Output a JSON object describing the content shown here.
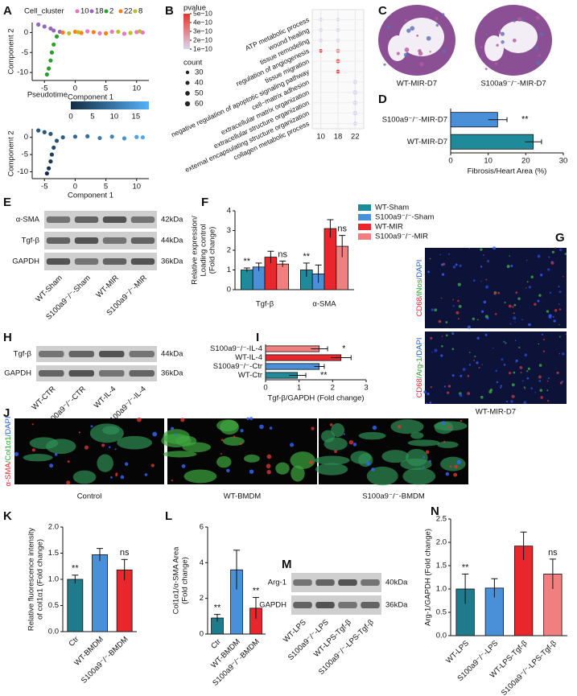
{
  "chart_data": [
    {
      "panel": "A",
      "type": "scatter",
      "legend_title": "Cell_cluster",
      "xlabel": "Component 1",
      "ylabel": "Component 2",
      "xlim": [
        -7,
        12
      ],
      "ylim": [
        -12,
        2.5
      ],
      "xticks": [
        -5,
        0,
        5,
        10
      ],
      "yticks": [
        0,
        -5,
        -10
      ],
      "series": [
        {
          "name": "10",
          "color": "#e377c2",
          "x": [
            2,
            4,
            6,
            8,
            10,
            11
          ],
          "y": [
            0.3,
            -0.2,
            0.2,
            -0.3,
            0.1,
            0
          ]
        },
        {
          "name": "18",
          "color": "#9467bd",
          "x": [
            -6,
            -5,
            -4,
            -3.5,
            -2.5
          ],
          "y": [
            2,
            1.5,
            1,
            0.5,
            0.2
          ]
        },
        {
          "name": "2",
          "color": "#2ca02c",
          "x": [
            -3,
            -3.5,
            -3.8,
            -4,
            -4.3,
            -4.6
          ],
          "y": [
            -1,
            -3,
            -5,
            -7,
            -9,
            -10.5
          ]
        },
        {
          "name": "22",
          "color": "#ff7f0e",
          "x": [
            -2,
            0,
            1,
            3,
            5
          ],
          "y": [
            0,
            0.2,
            -0.1,
            0.1,
            -0.2
          ]
        },
        {
          "name": "8",
          "color": "#bcbd22",
          "x": [
            7,
            9,
            10.5,
            -1,
            0.5
          ],
          "y": [
            0.2,
            -0.1,
            0.3,
            -0.2,
            0.1
          ]
        }
      ]
    },
    {
      "type": "scatter",
      "colorbar_title": "Pseudotime",
      "colorbar_lim": [
        0,
        18
      ],
      "colorbar_ticks": [
        0,
        5,
        10,
        15
      ],
      "colors": [
        "#132b43",
        "#56b1f7"
      ],
      "xlabel": "Component 1",
      "ylabel": "Component 2",
      "xlim": [
        -7,
        12
      ],
      "ylim": [
        -12,
        2.5
      ],
      "xticks": [
        -5,
        0,
        5,
        10
      ],
      "yticks": [
        0,
        -5,
        -10
      ],
      "series": [
        {
          "x": [
            -4.6,
            -4.3,
            -4,
            -3.8,
            -3.5,
            -3,
            -6,
            -5,
            -4,
            -2,
            0,
            2,
            4,
            6,
            8,
            10,
            11
          ],
          "y": [
            -10.5,
            -9,
            -7,
            -5,
            -3,
            -1,
            2,
            1.5,
            1,
            0,
            0.2,
            0.3,
            -0.2,
            0.2,
            -0.3,
            0.1,
            0
          ],
          "pseudotime": [
            0,
            1,
            2,
            3,
            4,
            5,
            6,
            6,
            6,
            7,
            8,
            9,
            11,
            12,
            14,
            16,
            17
          ]
        }
      ]
    },
    {
      "panel": "B",
      "type": "dot",
      "legend_title": "pvalue",
      "size_title": "count",
      "categories": [
        "ATP metabolic process",
        "wound healing",
        "tissue remodeling",
        "regulation of angiogenesis",
        "tissue migration",
        "negative regulation of apoptotic signaling pathway",
        "cell−matrix adhesion",
        "extracellular matrix organization",
        "extracellular structure organization",
        "external encapsulating structure organization",
        "collagen metabolic process"
      ],
      "series": [
        {
          "name": "10",
          "values": [
            30,
            35,
            35,
            30,
            null,
            null,
            null,
            null,
            null,
            null,
            null
          ],
          "pvalues": [
            1e-10,
            1e-10,
            1e-10,
            5e-10,
            null,
            null,
            null,
            null,
            null,
            null,
            null
          ]
        },
        {
          "name": "18",
          "values": [
            30,
            35,
            35,
            40,
            40,
            35,
            null,
            null,
            null,
            null,
            null
          ],
          "pvalues": [
            1e-10,
            1e-10,
            1e-10,
            3e-10,
            4e-10,
            5e-10,
            null,
            null,
            null,
            null,
            null
          ]
        },
        {
          "name": "22",
          "values": [
            null,
            null,
            null,
            null,
            null,
            null,
            45,
            50,
            50,
            50,
            40
          ],
          "pvalues": [
            null,
            null,
            null,
            null,
            null,
            null,
            1e-10,
            1e-10,
            1e-10,
            1e-10,
            1e-10
          ]
        }
      ],
      "pvalue_lim": [
        1e-10,
        5e-10
      ],
      "pvalue_ticks": [
        {
          "value": 5e-10,
          "label": "5e−10"
        },
        {
          "value": 4e-10,
          "label": "4e−10"
        },
        {
          "value": 3e-10,
          "label": "3e−10"
        },
        {
          "value": 2e-10,
          "label": "2e−10"
        },
        {
          "value": 1e-10,
          "label": "1e−10"
        }
      ],
      "colors": [
        "#d8d8ee",
        "#e8332a"
      ],
      "size_ticks": [
        30,
        40,
        50,
        60
      ]
    },
    {
      "panel": "D",
      "type": "hbar",
      "categories": [
        "S100a9⁻/⁻-MIR-D7",
        "WT-MIR-D7"
      ],
      "values": [
        12.5,
        22
      ],
      "errors": [
        2.5,
        2.2
      ],
      "colors": [
        "#4a90d9",
        "#1f8a9a"
      ],
      "annotations": [
        "**",
        null
      ],
      "xlabel": "Fibrosis/Heart Area (%)",
      "xlim": [
        0,
        30
      ],
      "xticks": [
        0,
        10,
        20,
        30
      ]
    },
    {
      "panel": "F",
      "type": "bar",
      "categories": [
        "Tgf-β",
        "α-SMA"
      ],
      "series": [
        {
          "name": "WT-Sham",
          "color": "#1f8a9a",
          "values": [
            1.0,
            1.0
          ],
          "errors": [
            0.1,
            0.35
          ],
          "annotations": [
            "**",
            "**"
          ]
        },
        {
          "name": "S100a9⁻/⁻-Sham",
          "color": "#4a90d9",
          "values": [
            1.15,
            0.8
          ],
          "errors": [
            0.2,
            0.45
          ]
        },
        {
          "name": "WT-MIR",
          "color": "#e8262b",
          "values": [
            1.65,
            3.1
          ],
          "errors": [
            0.3,
            0.45
          ]
        },
        {
          "name": "S100a9⁻/⁻-MIR",
          "color": "#f08080",
          "values": [
            1.3,
            2.2
          ],
          "errors": [
            0.15,
            0.55
          ],
          "annotations": [
            "ns",
            "ns"
          ]
        }
      ],
      "ylabel": [
        "Relative expression/",
        "Loading control",
        "(Fold change)"
      ],
      "ylim": [
        0,
        4
      ],
      "yticks": [
        0,
        1,
        2,
        3,
        4
      ]
    },
    {
      "panel": "I",
      "type": "hbar",
      "categories": [
        "S100a9⁻/⁻-IL-4",
        "WT-IL-4",
        "S100a9⁻/⁻-Ctr",
        "WT-Ctr"
      ],
      "values": [
        1.6,
        2.25,
        1.6,
        0.95
      ],
      "errors": [
        0.25,
        0.3,
        0.15,
        0.25
      ],
      "colors": [
        "#f08080",
        "#e8262b",
        "#4a90d9",
        "#1f8a9a"
      ],
      "annotations": [
        "*",
        null,
        null,
        "**"
      ],
      "xlabel": "Tgf-β/GAPDH (Fold change)",
      "xlim": [
        0,
        3
      ],
      "xticks": [
        0,
        1,
        2,
        3
      ]
    },
    {
      "panel": "K",
      "type": "bar",
      "categories": [
        "Ctr",
        "WT-BMDM",
        "S100a9⁻/⁻-BMDM"
      ],
      "values": [
        1.0,
        1.47,
        1.18
      ],
      "errors": [
        0.08,
        0.12,
        0.2
      ],
      "colors": [
        "#1f7a8c",
        "#4a90d9",
        "#e8262b"
      ],
      "annotations": [
        "**",
        null,
        "ns"
      ],
      "ylabel": [
        "Relative fluorescence intensity",
        "of col1α1 (Fold change)"
      ],
      "ylim": [
        0,
        2
      ],
      "yticks": [
        {
          "value": 0,
          "label": "0.0"
        },
        0.5,
        {
          "value": 1,
          "label": "1.0"
        },
        1.5,
        {
          "value": 2,
          "label": "2.0"
        }
      ]
    },
    {
      "panel": "L",
      "type": "bar",
      "categories": [
        "Ctr",
        "WT-BMDM",
        "S100a9⁻/⁻-BMDM"
      ],
      "values": [
        0.9,
        3.6,
        1.45
      ],
      "errors": [
        0.2,
        1.1,
        0.6
      ],
      "colors": [
        "#1f7a8c",
        "#4a90d9",
        "#e8262b"
      ],
      "annotations": [
        "**",
        null,
        "**"
      ],
      "ylabel": [
        "Col1α1/α-SMA Area",
        "(Fold change)"
      ],
      "ylim": [
        0,
        6
      ],
      "yticks": [
        0,
        2,
        4,
        6
      ]
    },
    {
      "panel": "N",
      "type": "bar",
      "categories": [
        "WT-LPS",
        "S100a9⁻/⁻-LPS",
        "WT-LPS-Tgf-β",
        "S100a9⁻/⁻-LPS-Tgf-β"
      ],
      "values": [
        1.0,
        1.02,
        1.92,
        1.32
      ],
      "errors": [
        0.32,
        0.2,
        0.3,
        0.32
      ],
      "colors": [
        "#1f7a8c",
        "#4a90d9",
        "#e8262b",
        "#f08080"
      ],
      "annotations": [
        "**",
        null,
        null,
        "ns"
      ],
      "ylabel": [
        "Arg-1/GAPDH (Fold change)"
      ],
      "ylim": [
        0,
        2.5
      ],
      "yticks": [
        {
          "value": 0,
          "label": "0.0"
        },
        0.5,
        {
          "value": 1,
          "label": "1.0"
        },
        1.5,
        {
          "value": 2,
          "label": "2.0"
        },
        2.5
      ]
    }
  ],
  "blots": [
    {
      "panel": "E",
      "rows": [
        {
          "label": "α-SMA",
          "kda": "42kDa"
        },
        {
          "label": "Tgf-β",
          "kda": "44kDa"
        },
        {
          "label": "GAPDH",
          "kda": "36kDa"
        }
      ],
      "lanes": [
        "WT-Sham",
        "S100a9⁻/⁻-Sham",
        "WT-MIR",
        "S100a9⁻/⁻-MIR"
      ]
    },
    {
      "panel": "H",
      "rows": [
        {
          "label": "Tgf-β",
          "kda": "44kDa"
        },
        {
          "label": "GAPDH",
          "kda": "36kDa"
        }
      ],
      "lanes": [
        "WT-CTR",
        "S100a9⁻/⁻-CTR",
        "WT-IL-4",
        "S100a9⁻/⁻-IL-4"
      ]
    },
    {
      "panel": "M",
      "rows": [
        {
          "label": "Arg-1",
          "kda": "40kDa"
        },
        {
          "label": "GAPDH",
          "kda": "36kDa"
        }
      ],
      "lanes": [
        "WT-LPS",
        "S100a9⁻/⁻-LPS",
        "WT-LPS-Tgf-β",
        "S100a9⁻/⁻-LPS-Tgf-β"
      ]
    }
  ],
  "images": {
    "hearts": {
      "panel": "C",
      "captions": [
        "WT-MIR-D7",
        "S100a9⁻/⁻-MIR-D7"
      ]
    },
    "tissue": {
      "panel": "G",
      "stains": [
        [
          "CD68",
          "/iNos",
          "/DAPI"
        ],
        [
          "CD68",
          "/Arg-1",
          "/DAPI"
        ]
      ],
      "caption": "WT-MIR-D7"
    },
    "cells": {
      "panel": "J",
      "stain": [
        "α-SMA",
        "/Col1α1",
        "/DAPI"
      ],
      "captions": [
        "Control",
        "WT-BMDM",
        "S100a9⁻/⁻-BMDM"
      ]
    }
  }
}
